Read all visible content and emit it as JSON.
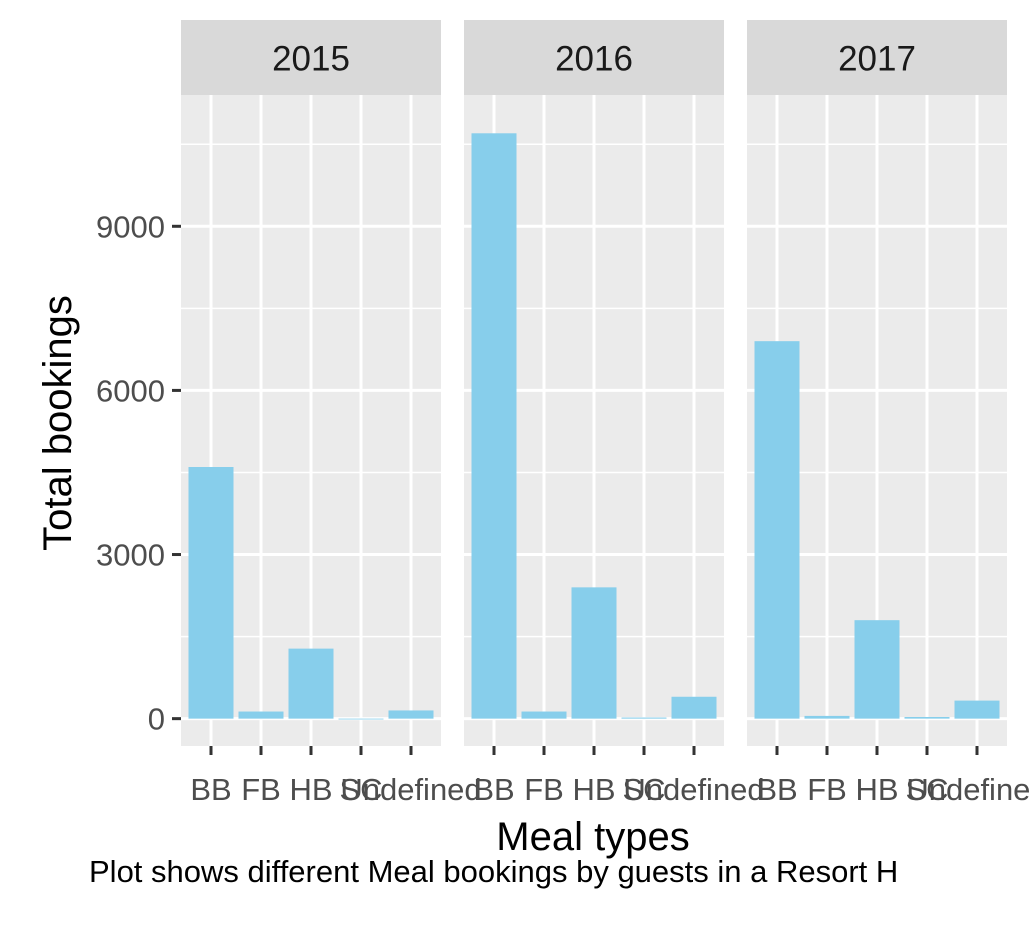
{
  "chart_data": {
    "type": "bar",
    "facet_by": "year",
    "panels": [
      {
        "label": "2015",
        "categories": [
          "BB",
          "FB",
          "HB",
          "SC",
          "Undefined"
        ],
        "values": [
          4600,
          130,
          1280,
          0,
          150
        ]
      },
      {
        "label": "2016",
        "categories": [
          "BB",
          "FB",
          "HB",
          "SC",
          "Undefined"
        ],
        "values": [
          10700,
          130,
          2400,
          20,
          400
        ]
      },
      {
        "label": "2017",
        "categories": [
          "BB",
          "FB",
          "HB",
          "SC",
          "Undefined"
        ],
        "values": [
          6900,
          50,
          1800,
          30,
          330
        ]
      }
    ],
    "xlabel": "Meal types",
    "ylabel": "Total bookings",
    "caption": "Plot shows different Meal bookings by guests in a Resort H",
    "ylim": [
      -500,
      11400
    ],
    "yticks": [
      0,
      3000,
      6000,
      9000
    ],
    "grid": true,
    "bar_color": "#87CEEB",
    "panel_background": "#EBEBEB",
    "strip_background": "#D9D9D9",
    "grid_color": "#FFFFFF",
    "text_color": "#000000",
    "tick_label_color": "#4D4D4D"
  }
}
